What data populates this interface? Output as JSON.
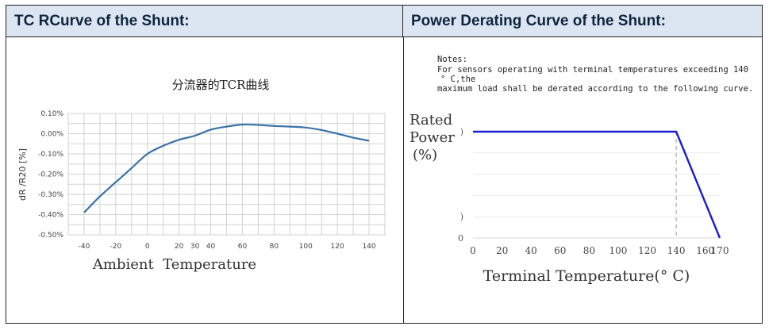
{
  "panels": {
    "left_header": "TC RCurve of  the Shunt:",
    "right_header": "Power Derating Curve of  the Shunt:"
  },
  "notes": {
    "line1": "Notes:",
    "line2": "For sensors operating with terminal temperatures exceeding 140",
    "line3": "° C,the",
    "line4": "maximum load shall be derated according to the following curve."
  },
  "chart_data": [
    {
      "type": "line",
      "title": "分流器的TCR曲线",
      "xlabel": "Ambient  Temperature",
      "ylabel": "dR /R20 [%]",
      "xlim": [
        -50,
        150
      ],
      "ylim": [
        -0.5,
        0.1
      ],
      "grid": true,
      "x_ticks": [
        -40,
        -20,
        0,
        20,
        30,
        40,
        60,
        80,
        100,
        120,
        140
      ],
      "x_tick_labels": [
        "-40",
        "-20",
        "0",
        "20",
        "30",
        "40",
        "60",
        "80",
        "100",
        "120",
        "140"
      ],
      "y_ticks": [
        0.1,
        0.0,
        -0.1,
        -0.2,
        -0.3,
        -0.4,
        -0.5
      ],
      "y_tick_labels": [
        "0.10%",
        "0.00%",
        "-0.10%",
        "-0.20%",
        "-0.30%",
        "-0.40%",
        "-0.50%"
      ],
      "series": [
        {
          "color": "#3a72a8",
          "x": [
            -40,
            -30,
            -20,
            -10,
            0,
            10,
            20,
            30,
            40,
            50,
            60,
            70,
            80,
            90,
            100,
            110,
            120,
            130,
            140
          ],
          "y": [
            -0.39,
            -0.31,
            -0.24,
            -0.17,
            -0.1,
            -0.06,
            -0.03,
            -0.01,
            0.02,
            0.035,
            0.045,
            0.043,
            0.038,
            0.035,
            0.03,
            0.018,
            0.0,
            -0.02,
            -0.035
          ]
        }
      ]
    },
    {
      "type": "line",
      "title": "",
      "xlabel": "Terminal Temperature(° C)",
      "ylabel_lines": [
        "Rated",
        "Power",
        "(%)"
      ],
      "xlim": [
        0,
        170
      ],
      "ylim": [
        0,
        100
      ],
      "grid": true,
      "x_ticks": [
        0,
        20,
        40,
        60,
        80,
        100,
        120,
        140,
        160,
        170
      ],
      "x_tick_labels": [
        "0",
        "20",
        "40",
        "60",
        "80",
        "100",
        "120",
        "140",
        "160",
        "170"
      ],
      "y_tick_labels_visible": [
        ")",
        ")",
        "0"
      ],
      "series": [
        {
          "color": "#1c1ccc",
          "x": [
            0,
            140,
            170
          ],
          "y": [
            100,
            100,
            0
          ]
        }
      ],
      "annotations": [
        {
          "type": "vline-dashed",
          "x": 140
        }
      ]
    }
  ]
}
